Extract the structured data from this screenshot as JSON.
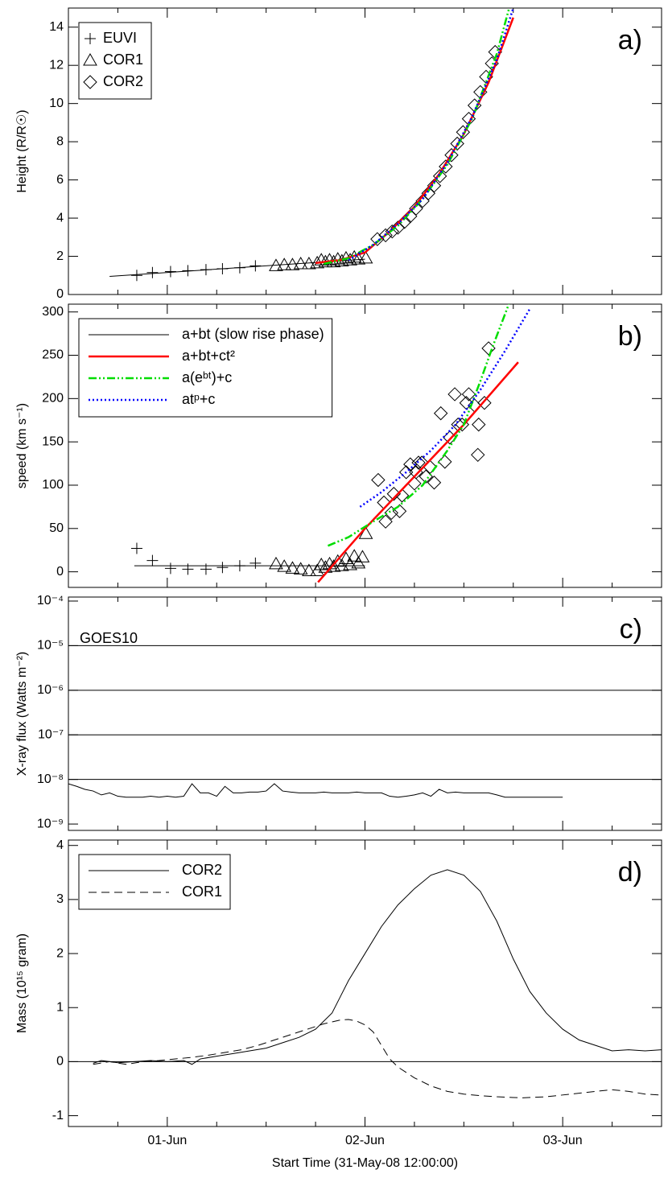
{
  "chart_data": [
    {
      "type": "scatter",
      "ylabel": "Height (R/R☉)",
      "panel_label": "a)",
      "legend": "upper left",
      "xlim": [
        0,
        72
      ],
      "xticks": [
        12,
        36,
        60
      ],
      "xminorticks": [
        0,
        6,
        18,
        24,
        30,
        42,
        48,
        54,
        66,
        72
      ],
      "ylim": [
        0,
        15
      ],
      "yticks": [
        0,
        2,
        4,
        6,
        8,
        10,
        12,
        14
      ],
      "series": [
        {
          "name": "EUVI",
          "type": "scatter",
          "marker": "plus",
          "color": "#000000",
          "x": [
            8.3,
            10.2,
            12.4,
            14.5,
            16.7,
            18.7,
            20.8,
            22.7
          ],
          "values": [
            1.0,
            1.15,
            1.2,
            1.25,
            1.3,
            1.35,
            1.4,
            1.5
          ]
        },
        {
          "name": "COR1",
          "type": "scatter",
          "marker": "triangle",
          "color": "#000000",
          "x": [
            25.2,
            26.2,
            27.2,
            28.2,
            29.2,
            30.2,
            31.2,
            32.2,
            33.2,
            34.2,
            35.2,
            36.1,
            30.7,
            31.7,
            32.7,
            33.7,
            34.7
          ],
          "values": [
            1.5,
            1.55,
            1.55,
            1.6,
            1.6,
            1.65,
            1.7,
            1.7,
            1.75,
            1.8,
            1.85,
            1.9,
            1.8,
            1.8,
            1.85,
            1.9,
            1.95
          ]
        },
        {
          "name": "COR2",
          "type": "scatter",
          "marker": "diamond",
          "color": "#000000",
          "x": [
            37.5,
            38.5,
            39.3,
            40,
            40.8,
            41.5,
            42.2,
            43,
            43.7,
            44.4,
            45.1,
            45.8,
            46.5,
            47.2,
            47.9,
            48.6,
            49.3,
            50,
            50.7,
            51.4,
            51.8
          ],
          "values": [
            2.9,
            3.1,
            3.3,
            3.5,
            3.8,
            4.1,
            4.5,
            4.9,
            5.3,
            5.7,
            6.2,
            6.7,
            7.3,
            7.9,
            8.5,
            9.2,
            9.9,
            10.6,
            11.4,
            12.1,
            12.7
          ]
        },
        {
          "type": "line",
          "color": "#000000",
          "x": [
            5,
            36
          ],
          "values": [
            0.95,
            1.85
          ]
        },
        {
          "type": "line",
          "color": "#ff0000",
          "width": 2.5,
          "x": [
            30,
            33,
            36,
            39,
            42,
            45,
            48,
            51,
            54
          ],
          "values": [
            1.65,
            1.8,
            2.2,
            3.3,
            4.6,
            6.3,
            8.4,
            11.1,
            14.5
          ]
        },
        {
          "type": "line",
          "color": "#00dd00",
          "width": 2.5,
          "dash": "10,3,2,3,2,3",
          "x": [
            31,
            34,
            37,
            40,
            43,
            46,
            49,
            52,
            53.5
          ],
          "values": [
            1.6,
            1.9,
            2.6,
            3.6,
            5.0,
            6.8,
            9.2,
            12.6,
            15
          ]
        },
        {
          "type": "line",
          "color": "#0000ff",
          "width": 2.5,
          "dash": "2,3",
          "x": [
            34,
            37,
            40,
            43,
            46,
            49,
            52,
            54
          ],
          "values": [
            1.8,
            2.6,
            3.7,
            5.0,
            6.9,
            9.3,
            12.3,
            15
          ]
        }
      ]
    },
    {
      "type": "scatter",
      "ylabel": "speed (km s⁻¹)",
      "panel_label": "b)",
      "legend": "upper left",
      "xlim": [
        0,
        72
      ],
      "xticks": [
        12,
        36,
        60
      ],
      "xminorticks": [
        0,
        6,
        18,
        24,
        30,
        42,
        48,
        54,
        66,
        72
      ],
      "ylim": [
        -18,
        309
      ],
      "yticks": [
        0,
        50,
        100,
        150,
        200,
        250,
        300
      ],
      "series": [
        {
          "type": "scatter",
          "marker": "plus",
          "color": "#000000",
          "x": [
            8.3,
            10.2,
            12.4,
            14.5,
            16.7,
            18.7,
            20.8,
            22.7
          ],
          "values": [
            27,
            13,
            4,
            3,
            3,
            5,
            7,
            10
          ]
        },
        {
          "type": "scatter",
          "marker": "triangle",
          "color": "#000000",
          "x": [
            25.2,
            26.2,
            27.2,
            28.2,
            29.2,
            30.2,
            31.2,
            32.2,
            33.2,
            34.2,
            35.2,
            36.1,
            30.7,
            31.7,
            32.7,
            33.7,
            34.7,
            35.7
          ],
          "values": [
            9,
            6,
            4,
            3,
            1,
            1,
            5,
            6,
            7,
            8,
            10,
            44,
            8,
            9,
            12,
            15,
            18,
            17
          ]
        },
        {
          "type": "scatter",
          "marker": "diamond",
          "color": "#000000",
          "x": [
            37.6,
            38.3,
            38.5,
            39.2,
            39.5,
            40.2,
            40.5,
            41,
            41.5,
            42,
            42.2,
            42.5,
            42.9,
            43.4,
            43.9,
            44.4,
            45.2,
            45.7,
            46.3,
            46.9,
            47.3,
            47.8,
            48.3,
            48.6,
            49.3,
            49.8,
            49.7,
            50.5,
            51
          ],
          "values": [
            106,
            80,
            58,
            68,
            90,
            70,
            88,
            115,
            124,
            102,
            115,
            126,
            126,
            110,
            121,
            103,
            183,
            127,
            155,
            205,
            170,
            170,
            195,
            205,
            192,
            170,
            135,
            195,
            258
          ]
        },
        {
          "name": "a+bt (slow rise phase)",
          "type": "line",
          "color": "#000000",
          "x": [
            8,
            36
          ],
          "values": [
            7,
            7
          ]
        },
        {
          "name": "a+bt+ct²",
          "type": "line",
          "color": "#ff0000",
          "width": 2.5,
          "x": [
            30.3,
            36,
            42,
            48,
            54.6
          ],
          "values": [
            -12,
            50,
            110,
            170,
            242
          ]
        },
        {
          "name": "a(eᵇᵗ)+c",
          "type": "line",
          "color": "#00dd00",
          "width": 2.5,
          "dash": "10,3,2,3,2,3",
          "x": [
            31.5,
            34,
            37,
            40,
            43,
            46,
            48,
            50,
            51.5,
            53.5
          ],
          "values": [
            30,
            40,
            58,
            75,
            100,
            140,
            170,
            220,
            260,
            310
          ]
        },
        {
          "name": "atᵖ+c",
          "type": "line",
          "color": "#0000ff",
          "width": 2.5,
          "dash": "2,3",
          "x": [
            35.4,
            38,
            41,
            44,
            47,
            50,
            53,
            56.1
          ],
          "values": [
            75,
            92,
            115,
            140,
            170,
            210,
            255,
            305
          ]
        }
      ]
    },
    {
      "type": "line",
      "ylabel": "X-ray flux (Watts m⁻²)",
      "panel_label": "c)",
      "annotation": "GOES10",
      "ylog": true,
      "xlim": [
        0,
        72
      ],
      "xticks": [
        12,
        36,
        60
      ],
      "xminorticks": [
        0,
        6,
        18,
        24,
        30,
        42,
        48,
        54,
        66,
        72
      ],
      "ylim": [
        7.2e-10,
        0.000123
      ],
      "yticks": [
        {
          "value": 1e-09,
          "label": "10⁻⁹"
        },
        {
          "value": 1e-08,
          "label": "10⁻⁸"
        },
        {
          "value": 1e-07,
          "label": "10⁻⁷"
        },
        {
          "value": 1e-06,
          "label": "10⁻⁶"
        },
        {
          "value": 1e-05,
          "label": "10⁻⁵"
        },
        {
          "value": 0.0001,
          "label": "10⁻⁴"
        }
      ],
      "hlines": [
        1e-08,
        1e-07,
        1e-06,
        1e-05
      ],
      "series": [
        {
          "type": "line",
          "color": "#000000",
          "x": [
            0,
            1,
            2,
            3,
            4,
            5,
            6,
            7,
            8,
            9,
            10,
            11,
            12,
            13,
            14,
            15,
            16,
            17,
            18,
            19,
            20,
            21,
            22,
            23,
            24,
            25,
            26,
            27,
            28,
            29,
            30,
            31,
            32,
            33,
            34,
            35,
            36,
            37,
            38,
            39,
            40,
            41,
            42,
            43,
            44,
            45,
            46,
            47,
            48,
            49,
            50,
            51,
            52,
            53,
            54,
            55,
            56,
            57,
            58,
            59,
            60
          ],
          "values": [
            8e-09,
            7e-09,
            6e-09,
            5.5e-09,
            4.5e-09,
            5e-09,
            4.2e-09,
            4e-09,
            4e-09,
            4e-09,
            4.2e-09,
            4e-09,
            4.2e-09,
            4e-09,
            4.2e-09,
            8e-09,
            5e-09,
            5e-09,
            4.2e-09,
            7e-09,
            5e-09,
            5e-09,
            5.2e-09,
            5.2e-09,
            5.5e-09,
            8e-09,
            5.5e-09,
            5.2e-09,
            5e-09,
            5e-09,
            5e-09,
            5.2e-09,
            5e-09,
            5e-09,
            5e-09,
            5.2e-09,
            5e-09,
            5e-09,
            5e-09,
            4.2e-09,
            4e-09,
            4.2e-09,
            4.5e-09,
            5e-09,
            4.2e-09,
            6e-09,
            5e-09,
            5.2e-09,
            5e-09,
            5e-09,
            5e-09,
            5e-09,
            4.5e-09,
            4e-09,
            4e-09,
            4e-09,
            4e-09,
            4e-09,
            4e-09,
            4e-09,
            4e-09
          ]
        }
      ]
    },
    {
      "type": "line",
      "ylabel": "Mass (10¹⁵ gram)",
      "panel_label": "d)",
      "legend": "upper left",
      "xlabel": "Start Time (31-May-08 12:00:00)",
      "xlim": [
        0,
        72
      ],
      "xticks": [
        {
          "value": 12,
          "label": "01-Jun"
        },
        {
          "value": 36,
          "label": "02-Jun"
        },
        {
          "value": 60,
          "label": "03-Jun"
        }
      ],
      "xminorticks": [
        0,
        6,
        18,
        24,
        30,
        42,
        48,
        54,
        66,
        72
      ],
      "ylim": [
        -1.2,
        4.1
      ],
      "yticks": [
        -1,
        0,
        1,
        2,
        3,
        4
      ],
      "hlines": [
        0
      ],
      "series": [
        {
          "name": "COR2",
          "type": "line",
          "color": "#000000",
          "x": [
            3,
            4,
            6,
            8,
            10,
            12,
            14,
            15,
            16,
            18,
            20,
            22,
            24,
            26,
            28,
            30,
            32,
            33,
            34,
            36,
            38,
            40,
            42,
            44,
            46,
            48,
            50,
            52,
            54,
            56,
            58,
            60,
            62,
            64,
            66,
            68,
            70,
            72
          ],
          "values": [
            -0.03,
            0.02,
            -0.02,
            0,
            0.02,
            0,
            0.02,
            -0.05,
            0.05,
            0.1,
            0.15,
            0.2,
            0.25,
            0.35,
            0.45,
            0.6,
            0.9,
            1.2,
            1.5,
            2.0,
            2.5,
            2.9,
            3.2,
            3.45,
            3.55,
            3.45,
            3.15,
            2.6,
            1.9,
            1.3,
            0.9,
            0.6,
            0.4,
            0.3,
            0.2,
            0.22,
            0.2,
            0.22
          ]
        },
        {
          "name": "COR1",
          "type": "line",
          "color": "#000000",
          "dash": "10,6",
          "x": [
            3,
            5,
            7,
            9,
            11,
            13,
            15,
            17,
            19,
            21,
            23,
            25,
            27,
            29,
            31,
            33,
            34,
            35,
            36,
            37,
            38,
            39,
            40,
            42,
            44,
            46,
            48,
            50,
            52,
            55,
            58,
            61,
            64,
            66,
            68,
            70,
            72
          ],
          "values": [
            -0.05,
            0,
            -0.05,
            0,
            0.02,
            0.05,
            0.08,
            0.12,
            0.17,
            0.22,
            0.3,
            0.4,
            0.5,
            0.6,
            0.7,
            0.77,
            0.78,
            0.75,
            0.68,
            0.55,
            0.3,
            0.05,
            -0.1,
            -0.3,
            -0.45,
            -0.55,
            -0.6,
            -0.63,
            -0.65,
            -0.67,
            -0.65,
            -0.6,
            -0.55,
            -0.52,
            -0.55,
            -0.6,
            -0.62
          ]
        }
      ]
    }
  ]
}
